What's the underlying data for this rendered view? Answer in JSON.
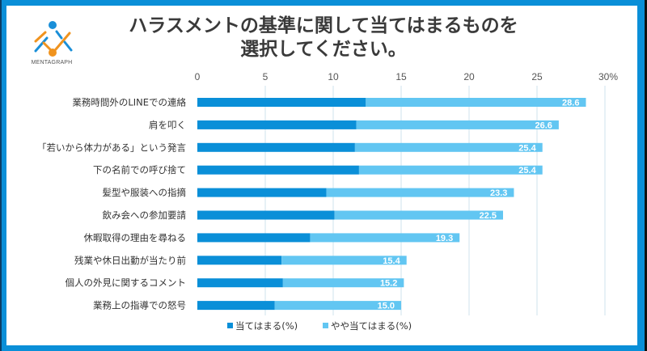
{
  "brand": {
    "name": "MENTAGRAPH",
    "logo_icon": "mentagraph-logo-icon",
    "colors": {
      "blue": "#1a8fd8",
      "orange": "#f0931e"
    }
  },
  "frame_color": "#0a8fd8",
  "chart_data": {
    "type": "bar",
    "orientation": "horizontal",
    "stacked": true,
    "title": "ハラスメントの基準に関して当てはまるものを選択してください。",
    "title_lines": [
      "ハラスメントの基準に関して当てはまるものを",
      "選択してください。"
    ],
    "xlabel": "",
    "ylabel": "",
    "xlim": [
      0,
      30
    ],
    "x_ticks": [
      "0",
      "5",
      "10",
      "15",
      "20",
      "25",
      "30%"
    ],
    "x_tick_values": [
      0,
      5,
      10,
      15,
      20,
      25,
      30
    ],
    "grid": true,
    "legend_position": "bottom",
    "categories": [
      "業務時間外のLINEでの連絡",
      "肩を叩く",
      "「若いから体力がある」という発言",
      "下の名前での呼び捨て",
      "髪型や服装への指摘",
      "飲み会への参加要請",
      "休暇取得の理由を尋ねる",
      "残業や休日出勤が当たり前",
      "個人の外見に関するコメント",
      "業務上の指導での怒号"
    ],
    "series": [
      {
        "name": "当てはまる(%)",
        "color": "#0a8fd8",
        "values": [
          12.4,
          11.7,
          11.6,
          11.9,
          9.5,
          10.1,
          8.3,
          6.2,
          6.3,
          5.7
        ]
      },
      {
        "name": "やや当てはまる(%)",
        "color": "#62c6f2",
        "values": [
          16.2,
          14.9,
          13.8,
          13.5,
          13.8,
          12.4,
          11.0,
          9.2,
          8.9,
          9.3
        ]
      }
    ],
    "totals": [
      28.6,
      26.6,
      25.4,
      25.4,
      23.3,
      22.5,
      19.3,
      15.4,
      15.2,
      15.0
    ],
    "total_labels": [
      "28.6",
      "26.6",
      "25.4",
      "25.4",
      "23.3",
      "22.5",
      "19.3",
      "15.4",
      "15.2",
      "15.0"
    ]
  }
}
